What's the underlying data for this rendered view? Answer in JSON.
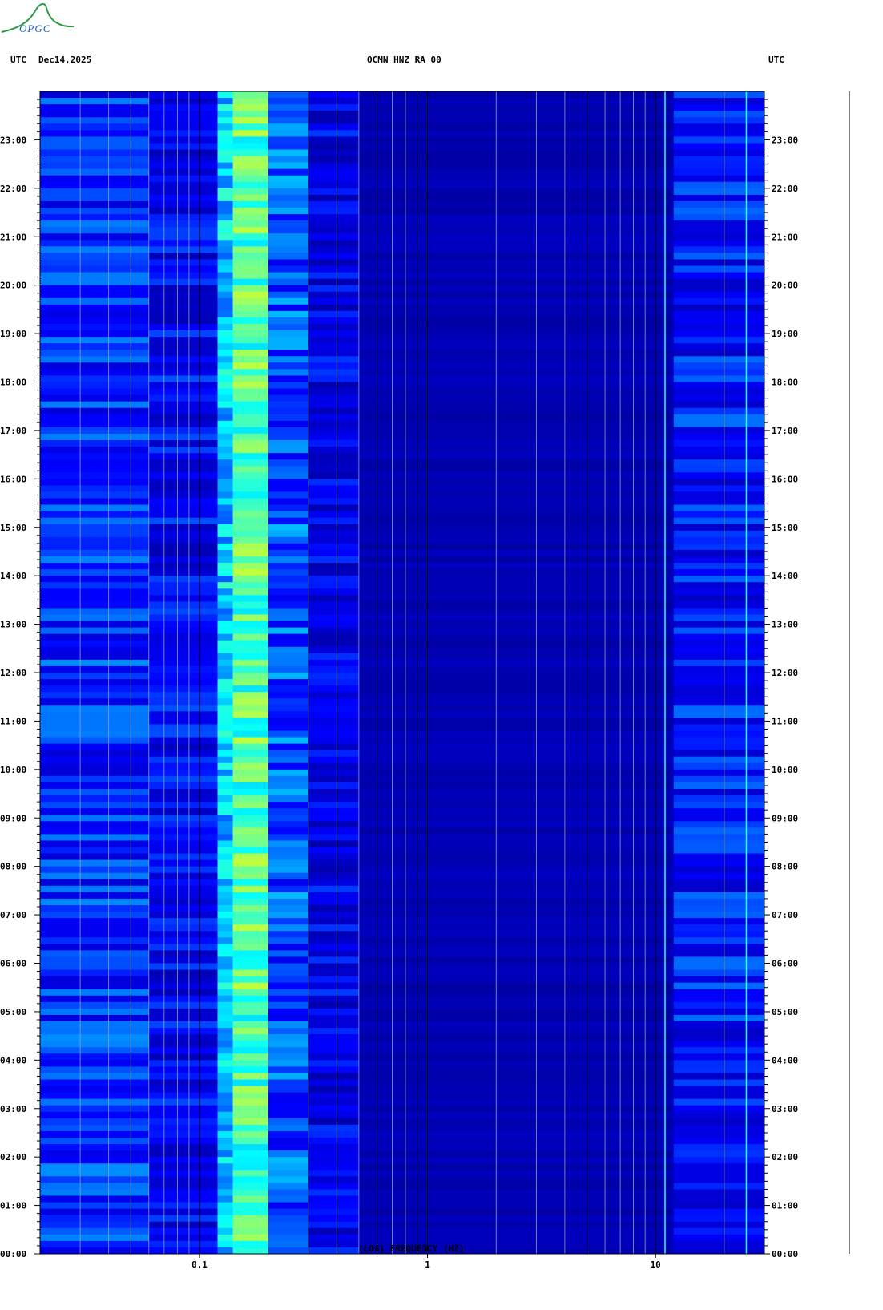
{
  "logo": {
    "text": "OPGC"
  },
  "header": {
    "left_tz": "UTC",
    "date": "Dec14,2025",
    "station": "OCMN HNZ RA 00",
    "right_tz": "UTC"
  },
  "chart_data": {
    "type": "heatmap",
    "title": "OCMN HNZ RA 00",
    "xlabel": "(LOG) FREQUENCY (HZ)",
    "x_scale": "log",
    "xlim": [
      0.02,
      30
    ],
    "x_ticks": [
      {
        "value": 0.1,
        "label": "0.1"
      },
      {
        "value": 1,
        "label": "1"
      },
      {
        "value": 10,
        "label": "10"
      }
    ],
    "y_ticks": [
      "00:00",
      "01:00",
      "02:00",
      "03:00",
      "04:00",
      "05:00",
      "06:00",
      "07:00",
      "08:00",
      "09:00",
      "10:00",
      "11:00",
      "12:00",
      "13:00",
      "14:00",
      "15:00",
      "16:00",
      "17:00",
      "18:00",
      "19:00",
      "20:00",
      "21:00",
      "22:00",
      "23:00"
    ],
    "ylim_hours": [
      0,
      24
    ],
    "colormap": [
      "#000080",
      "#0000ff",
      "#00ffff",
      "#ffff00",
      "#ff0000"
    ],
    "bands": [
      {
        "f_lo": 0.02,
        "f_hi": 0.06,
        "level": 0.28
      },
      {
        "f_lo": 0.06,
        "f_hi": 0.12,
        "level": 0.22
      },
      {
        "f_lo": 0.12,
        "f_hi": 0.14,
        "level": 0.45
      },
      {
        "f_lo": 0.14,
        "f_hi": 0.2,
        "level": 0.58
      },
      {
        "f_lo": 0.2,
        "f_hi": 0.3,
        "level": 0.33
      },
      {
        "f_lo": 0.3,
        "f_hi": 0.5,
        "level": 0.2
      },
      {
        "f_lo": 0.5,
        "f_hi": 12,
        "level": 0.1
      },
      {
        "f_lo": 12,
        "f_hi": 30,
        "level": 0.25
      }
    ],
    "spectral_lines_hz": [
      11,
      25
    ]
  }
}
